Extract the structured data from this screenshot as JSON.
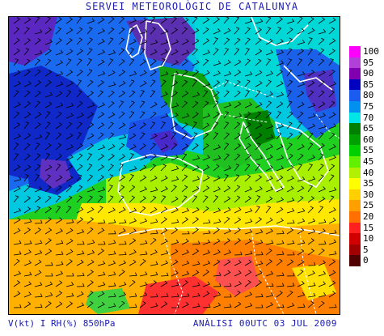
{
  "header": {
    "title": "SERVEI METEOROLÒGIC DE CATALUNYA"
  },
  "footer": {
    "left_label": "V(kt) I RH(%) 850hPa",
    "right_label": "ANÀLISI 00UTC 03 JUL 2009"
  },
  "legend": {
    "items": [
      {
        "value": "100",
        "color": "#ff00ff"
      },
      {
        "value": "95",
        "color": "#b040d8"
      },
      {
        "value": "90",
        "color": "#8000b0"
      },
      {
        "value": "85",
        "color": "#0000c0"
      },
      {
        "value": "80",
        "color": "#1a5cf0"
      },
      {
        "value": "75",
        "color": "#0090f0"
      },
      {
        "value": "70",
        "color": "#00e6e6"
      },
      {
        "value": "65",
        "color": "#008000"
      },
      {
        "value": "60",
        "color": "#00a000"
      },
      {
        "value": "55",
        "color": "#00d000"
      },
      {
        "value": "45",
        "color": "#60f000"
      },
      {
        "value": "40",
        "color": "#b0f000"
      },
      {
        "value": "35",
        "color": "#ffff00"
      },
      {
        "value": "30",
        "color": "#ffd000"
      },
      {
        "value": "25",
        "color": "#ffa000"
      },
      {
        "value": "20",
        "color": "#ff7000"
      },
      {
        "value": "15",
        "color": "#ff2020"
      },
      {
        "value": "10",
        "color": "#d00000"
      },
      {
        "value": "5",
        "color": "#a00000"
      },
      {
        "value": "0",
        "color": "#500000"
      }
    ]
  },
  "map": {
    "field": "Relative humidity (%) and wind barbs (kt) at 850 hPa",
    "region": "Western Europe, North Africa and the eastern Atlantic"
  }
}
